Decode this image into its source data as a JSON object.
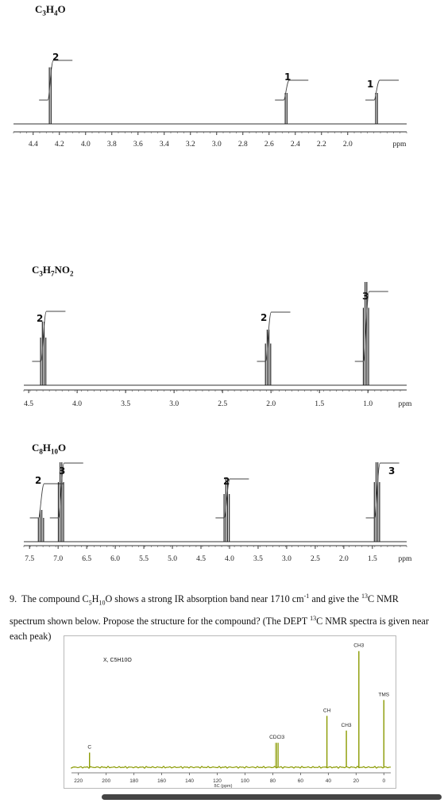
{
  "chart_data": [
    {
      "type": "line",
      "title": "C3H4O",
      "xlabel": "ppm",
      "x_ticks": [
        "4.4",
        "4.2",
        "4.0",
        "3.8",
        "3.6",
        "3.4",
        "3.2",
        "3.0",
        "2.8",
        "2.6",
        "2.4",
        "2.2",
        "2.0"
      ],
      "xlim": [
        4.55,
        1.55
      ],
      "peaks": [
        {
          "ppm": 4.27,
          "integration": "2"
        },
        {
          "ppm": 2.47,
          "integration": "1"
        },
        {
          "ppm": 1.78,
          "integration": "1"
        }
      ]
    },
    {
      "type": "line",
      "title": "C3H7NO2",
      "xlabel": "ppm",
      "x_ticks": [
        "4.5",
        "4.0",
        "3.5",
        "3.0",
        "2.5",
        "2.0",
        "1.5",
        "1.0"
      ],
      "xlim": [
        4.55,
        0.6
      ],
      "peaks": [
        {
          "ppm": 4.35,
          "integration": "2"
        },
        {
          "ppm": 2.03,
          "integration": "2"
        },
        {
          "ppm": 1.02,
          "integration": "3"
        }
      ]
    },
    {
      "type": "line",
      "title": "C8H10O",
      "xlabel": "ppm",
      "x_ticks": [
        "7.5",
        "7.0",
        "6.5",
        "6.0",
        "5.5",
        "5.0",
        "4.5",
        "4.0",
        "3.5",
        "3.0",
        "2.5",
        "2.0",
        "1.5"
      ],
      "xlim": [
        7.6,
        0.9
      ],
      "peaks": [
        {
          "ppm": 7.3,
          "integration": "2"
        },
        {
          "ppm": 6.95,
          "integration": "3"
        },
        {
          "ppm": 4.05,
          "integration": "2"
        },
        {
          "ppm": 1.42,
          "integration": "3"
        }
      ]
    },
    {
      "type": "line",
      "title": "X, C5H10O",
      "xlabel": "δC (ppm)",
      "x_ticks": [
        "220",
        "200",
        "180",
        "160",
        "140",
        "120",
        "100",
        "80",
        "60",
        "40",
        "20",
        "0"
      ],
      "xlim": [
        225,
        -5
      ],
      "line_color": "#8a9a00",
      "peaks": [
        {
          "ppm": 212,
          "label": "C",
          "height": 0.12
        },
        {
          "ppm": 77,
          "label": "CDCl3",
          "height": 0.2
        },
        {
          "ppm": 41,
          "label": "CH",
          "height": 0.42
        },
        {
          "ppm": 27,
          "label": "CH3",
          "height": 0.3
        },
        {
          "ppm": 18,
          "label": "CH3",
          "height": 0.95
        },
        {
          "ppm": 0,
          "label": "TMS",
          "height": 0.55
        }
      ]
    }
  ],
  "question": {
    "number": "9.",
    "text_1": "The compound C",
    "sub_1": "5",
    "text_2": "H",
    "sub_2": "10",
    "text_3": "O shows a strong IR absorption band near 1710 cm",
    "sup_1": "-1",
    "text_4": " and give the ",
    "sup_2": "13",
    "text_5": "C NMR spectrum shown below. Propose the structure for the compound? (The DEPT ",
    "sup_3": "13",
    "text_6": "C NMR spectra is given near each peak)"
  }
}
